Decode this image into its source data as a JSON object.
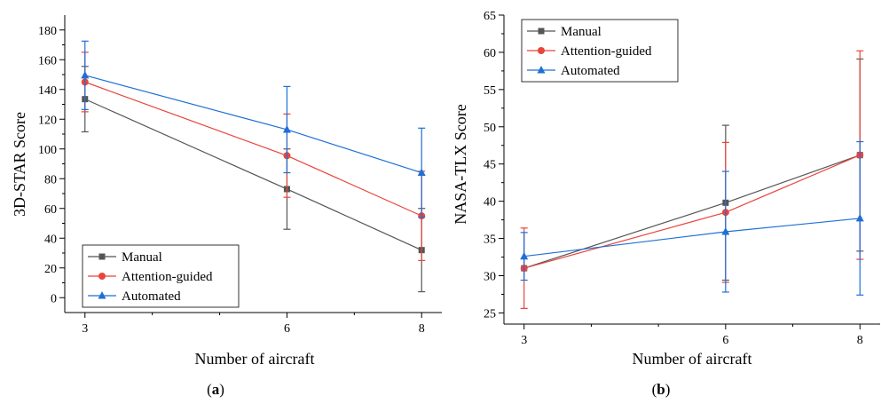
{
  "colors": {
    "Manual": "#555555",
    "Attention-guided": "#e8453c",
    "Automated": "#1f6fd6"
  },
  "markers": {
    "Manual": "square",
    "Attention-guided": "circle",
    "Automated": "triangle"
  },
  "captions": {
    "a": "a",
    "b": "b"
  },
  "chart_data": [
    {
      "type": "line",
      "xlabel": "Number of aircraft",
      "ylabel": "3D-STAR Score",
      "x": [
        3,
        6,
        8
      ],
      "xticks": [
        "3",
        "6",
        "8"
      ],
      "xlim": [
        2.7,
        8.3
      ],
      "ylim": [
        -10,
        190
      ],
      "yticks": [
        "0",
        "20",
        "40",
        "60",
        "80",
        "100",
        "120",
        "140",
        "160",
        "180"
      ],
      "ytick_values": [
        0,
        20,
        40,
        60,
        80,
        100,
        120,
        140,
        160,
        180
      ],
      "legend_position": "bottom-left",
      "series": [
        {
          "name": "Manual",
          "values": [
            133.5,
            73,
            32
          ],
          "errors": [
            22,
            27,
            28
          ]
        },
        {
          "name": "Attention-guided",
          "values": [
            145,
            95.5,
            55
          ],
          "errors": [
            20,
            28,
            30
          ]
        },
        {
          "name": "Automated",
          "values": [
            149.5,
            113,
            84
          ],
          "errors": [
            23,
            29,
            30
          ]
        }
      ]
    },
    {
      "type": "line",
      "xlabel": "Number of aircraft",
      "ylabel": "NASA-TLX Score",
      "x": [
        3,
        6,
        8
      ],
      "xticks": [
        "3",
        "6",
        "8"
      ],
      "xlim": [
        2.7,
        8.3
      ],
      "ylim": [
        23.5,
        65
      ],
      "yticks": [
        "25",
        "30",
        "35",
        "40",
        "45",
        "50",
        "55",
        "60",
        "65"
      ],
      "ytick_values": [
        25,
        30,
        35,
        40,
        45,
        50,
        55,
        60,
        65
      ],
      "legend_position": "top-left",
      "series": [
        {
          "name": "Manual",
          "values": [
            31,
            39.8,
            46.2
          ],
          "errors": [
            0,
            10.4,
            12.9
          ]
        },
        {
          "name": "Attention-guided",
          "values": [
            31,
            38.5,
            46.2
          ],
          "errors": [
            5.4,
            9.4,
            14
          ]
        },
        {
          "name": "Automated",
          "values": [
            32.6,
            35.9,
            37.7
          ],
          "errors": [
            3.2,
            8.1,
            10.3
          ]
        }
      ]
    }
  ]
}
